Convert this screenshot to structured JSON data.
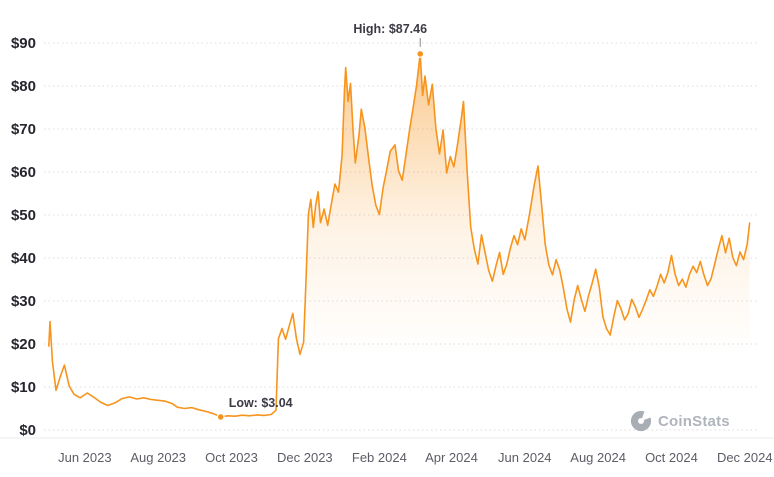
{
  "chart_data": {
    "type": "line",
    "title": "",
    "xlabel": "",
    "ylabel": "",
    "grid": "horizontal-dotted",
    "legend": "none",
    "line_color": "#F7941D",
    "fill": "orange-gradient-to-transparent",
    "ylim": [
      0,
      90
    ],
    "xlim": [
      "2023-04-28",
      "2024-12-12"
    ],
    "watermark": "CoinStats",
    "y_ticks": [
      {
        "value": 0,
        "label": "$0"
      },
      {
        "value": 10,
        "label": "$10"
      },
      {
        "value": 20,
        "label": "$20"
      },
      {
        "value": 30,
        "label": "$30"
      },
      {
        "value": 40,
        "label": "$40"
      },
      {
        "value": 50,
        "label": "$50"
      },
      {
        "value": 60,
        "label": "$60"
      },
      {
        "value": 70,
        "label": "$70"
      },
      {
        "value": 80,
        "label": "$80"
      },
      {
        "value": 90,
        "label": "$90"
      }
    ],
    "x_ticks": [
      {
        "date": "2023-06-01",
        "label": "Jun 2023"
      },
      {
        "date": "2023-08-01",
        "label": "Aug 2023"
      },
      {
        "date": "2023-10-01",
        "label": "Oct 2023"
      },
      {
        "date": "2023-12-01",
        "label": "Dec 2023"
      },
      {
        "date": "2024-02-01",
        "label": "Feb 2024"
      },
      {
        "date": "2024-04-01",
        "label": "Apr 2024"
      },
      {
        "date": "2024-06-01",
        "label": "Jun 2024"
      },
      {
        "date": "2024-08-01",
        "label": "Aug 2024"
      },
      {
        "date": "2024-10-01",
        "label": "Oct 2024"
      },
      {
        "date": "2024-12-01",
        "label": "Dec 2024"
      }
    ],
    "annotations": {
      "high": {
        "label": "High: $87.46",
        "date": "2024-03-06",
        "value": 87.46
      },
      "low": {
        "label": "Low: $3.04",
        "date": "2023-09-22",
        "value": 3.04
      }
    },
    "series": [
      {
        "name": "price",
        "color": "#F7941D",
        "points": [
          [
            "2023-05-02",
            19.5
          ],
          [
            "2023-05-03",
            25.2
          ],
          [
            "2023-05-05",
            16.0
          ],
          [
            "2023-05-08",
            9.2
          ],
          [
            "2023-05-12",
            12.8
          ],
          [
            "2023-05-15",
            15.1
          ],
          [
            "2023-05-19",
            10.2
          ],
          [
            "2023-05-23",
            8.3
          ],
          [
            "2023-05-28",
            7.5
          ],
          [
            "2023-06-03",
            8.6
          ],
          [
            "2023-06-08",
            7.7
          ],
          [
            "2023-06-14",
            6.5
          ],
          [
            "2023-06-20",
            5.7
          ],
          [
            "2023-06-26",
            6.3
          ],
          [
            "2023-07-02",
            7.3
          ],
          [
            "2023-07-08",
            7.7
          ],
          [
            "2023-07-14",
            7.2
          ],
          [
            "2023-07-20",
            7.5
          ],
          [
            "2023-07-26",
            7.1
          ],
          [
            "2023-08-01",
            6.9
          ],
          [
            "2023-08-07",
            6.7
          ],
          [
            "2023-08-13",
            6.1
          ],
          [
            "2023-08-17",
            5.3
          ],
          [
            "2023-08-23",
            5.0
          ],
          [
            "2023-08-29",
            5.2
          ],
          [
            "2023-09-04",
            4.7
          ],
          [
            "2023-09-10",
            4.3
          ],
          [
            "2023-09-16",
            3.8
          ],
          [
            "2023-09-22",
            3.04
          ],
          [
            "2023-09-28",
            3.3
          ],
          [
            "2023-10-04",
            3.2
          ],
          [
            "2023-10-10",
            3.45
          ],
          [
            "2023-10-16",
            3.3
          ],
          [
            "2023-10-22",
            3.5
          ],
          [
            "2023-10-28",
            3.4
          ],
          [
            "2023-11-03",
            3.6
          ],
          [
            "2023-11-07",
            4.6
          ],
          [
            "2023-11-09",
            21.2
          ],
          [
            "2023-11-12",
            23.6
          ],
          [
            "2023-11-15",
            21.1
          ],
          [
            "2023-11-18",
            24.2
          ],
          [
            "2023-11-21",
            27.1
          ],
          [
            "2023-11-24",
            21.3
          ],
          [
            "2023-11-27",
            17.6
          ],
          [
            "2023-11-30",
            20.4
          ],
          [
            "2023-12-02",
            34.8
          ],
          [
            "2023-12-04",
            50.2
          ],
          [
            "2023-12-06",
            53.6
          ],
          [
            "2023-12-08",
            47.1
          ],
          [
            "2023-12-10",
            52.3
          ],
          [
            "2023-12-12",
            55.4
          ],
          [
            "2023-12-14",
            48.2
          ],
          [
            "2023-12-17",
            51.4
          ],
          [
            "2023-12-20",
            47.6
          ],
          [
            "2023-12-23",
            52.5
          ],
          [
            "2023-12-26",
            57.2
          ],
          [
            "2023-12-29",
            55.3
          ],
          [
            "2024-01-01",
            64.0
          ],
          [
            "2024-01-03",
            79.2
          ],
          [
            "2024-01-04",
            84.3
          ],
          [
            "2024-01-06",
            76.4
          ],
          [
            "2024-01-08",
            80.6
          ],
          [
            "2024-01-10",
            70.3
          ],
          [
            "2024-01-12",
            62.1
          ],
          [
            "2024-01-15",
            68.4
          ],
          [
            "2024-01-17",
            74.6
          ],
          [
            "2024-01-20",
            70.2
          ],
          [
            "2024-01-23",
            63.4
          ],
          [
            "2024-01-26",
            56.8
          ],
          [
            "2024-01-29",
            52.3
          ],
          [
            "2024-02-01",
            50.1
          ],
          [
            "2024-02-04",
            56.2
          ],
          [
            "2024-02-07",
            60.4
          ],
          [
            "2024-02-10",
            64.8
          ],
          [
            "2024-02-14",
            66.3
          ],
          [
            "2024-02-17",
            60.2
          ],
          [
            "2024-02-20",
            58.1
          ],
          [
            "2024-02-23",
            63.8
          ],
          [
            "2024-02-26",
            69.5
          ],
          [
            "2024-02-29",
            74.8
          ],
          [
            "2024-03-03",
            80.2
          ],
          [
            "2024-03-06",
            87.46
          ],
          [
            "2024-03-08",
            77.8
          ],
          [
            "2024-03-10",
            82.3
          ],
          [
            "2024-03-13",
            75.6
          ],
          [
            "2024-03-16",
            80.4
          ],
          [
            "2024-03-19",
            70.1
          ],
          [
            "2024-03-22",
            64.2
          ],
          [
            "2024-03-25",
            69.8
          ],
          [
            "2024-03-28",
            59.8
          ],
          [
            "2024-03-31",
            63.6
          ],
          [
            "2024-04-03",
            61.2
          ],
          [
            "2024-04-06",
            66.4
          ],
          [
            "2024-04-09",
            72.1
          ],
          [
            "2024-04-11",
            76.4
          ],
          [
            "2024-04-14",
            60.3
          ],
          [
            "2024-04-17",
            47.2
          ],
          [
            "2024-04-20",
            42.1
          ],
          [
            "2024-04-23",
            38.6
          ],
          [
            "2024-04-26",
            45.4
          ],
          [
            "2024-04-29",
            41.2
          ],
          [
            "2024-05-02",
            37.1
          ],
          [
            "2024-05-05",
            34.6
          ],
          [
            "2024-05-08",
            38.2
          ],
          [
            "2024-05-11",
            41.3
          ],
          [
            "2024-05-14",
            36.2
          ],
          [
            "2024-05-17",
            38.6
          ],
          [
            "2024-05-20",
            42.3
          ],
          [
            "2024-05-23",
            45.2
          ],
          [
            "2024-05-26",
            43.1
          ],
          [
            "2024-05-29",
            46.8
          ],
          [
            "2024-06-01",
            44.2
          ],
          [
            "2024-06-05",
            50.3
          ],
          [
            "2024-06-09",
            57.2
          ],
          [
            "2024-06-12",
            61.4
          ],
          [
            "2024-06-15",
            52.3
          ],
          [
            "2024-06-18",
            43.2
          ],
          [
            "2024-06-21",
            38.4
          ],
          [
            "2024-06-24",
            36.1
          ],
          [
            "2024-06-27",
            39.6
          ],
          [
            "2024-06-30",
            37.2
          ],
          [
            "2024-07-03",
            33.1
          ],
          [
            "2024-07-06",
            28.2
          ],
          [
            "2024-07-09",
            25.1
          ],
          [
            "2024-07-12",
            30.2
          ],
          [
            "2024-07-15",
            33.6
          ],
          [
            "2024-07-18",
            30.4
          ],
          [
            "2024-07-21",
            27.6
          ],
          [
            "2024-07-24",
            31.2
          ],
          [
            "2024-07-27",
            34.1
          ],
          [
            "2024-07-30",
            37.4
          ],
          [
            "2024-08-02",
            33.2
          ],
          [
            "2024-08-05",
            26.3
          ],
          [
            "2024-08-08",
            23.6
          ],
          [
            "2024-08-11",
            22.1
          ],
          [
            "2024-08-14",
            26.4
          ],
          [
            "2024-08-17",
            30.1
          ],
          [
            "2024-08-20",
            28.2
          ],
          [
            "2024-08-23",
            25.6
          ],
          [
            "2024-08-26",
            27.1
          ],
          [
            "2024-08-29",
            30.4
          ],
          [
            "2024-09-01",
            28.6
          ],
          [
            "2024-09-04",
            26.2
          ],
          [
            "2024-09-07",
            28.1
          ],
          [
            "2024-09-10",
            30.2
          ],
          [
            "2024-09-13",
            32.6
          ],
          [
            "2024-09-16",
            31.1
          ],
          [
            "2024-09-19",
            33.4
          ],
          [
            "2024-09-22",
            36.2
          ],
          [
            "2024-09-25",
            34.2
          ],
          [
            "2024-09-28",
            36.6
          ],
          [
            "2024-10-01",
            40.6
          ],
          [
            "2024-10-04",
            36.2
          ],
          [
            "2024-10-07",
            33.6
          ],
          [
            "2024-10-10",
            35.1
          ],
          [
            "2024-10-13",
            33.2
          ],
          [
            "2024-10-16",
            36.2
          ],
          [
            "2024-10-19",
            38.1
          ],
          [
            "2024-10-22",
            36.6
          ],
          [
            "2024-10-25",
            39.2
          ],
          [
            "2024-10-28",
            36.1
          ],
          [
            "2024-10-31",
            33.6
          ],
          [
            "2024-11-03",
            35.2
          ],
          [
            "2024-11-06",
            38.6
          ],
          [
            "2024-11-09",
            42.1
          ],
          [
            "2024-11-12",
            45.2
          ],
          [
            "2024-11-15",
            41.2
          ],
          [
            "2024-11-18",
            44.6
          ],
          [
            "2024-11-21",
            40.1
          ],
          [
            "2024-11-24",
            38.2
          ],
          [
            "2024-11-27",
            41.4
          ],
          [
            "2024-11-30",
            39.6
          ],
          [
            "2024-12-03",
            43.2
          ],
          [
            "2024-12-05",
            48.1
          ]
        ]
      }
    ]
  }
}
